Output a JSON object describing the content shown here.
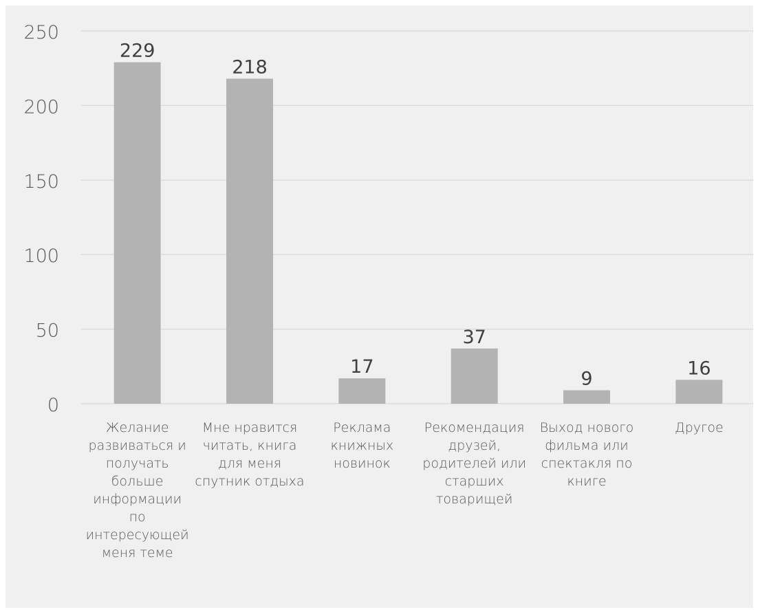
{
  "chart_data": {
    "type": "bar",
    "categories": [
      [
        "Желание",
        "развиваться и",
        "получать",
        "больше",
        "информации",
        "по",
        "интересующей",
        "меня теме"
      ],
      [
        "Мне нравится",
        "читать, книга",
        "для меня",
        "спутник отдыха"
      ],
      [
        "Реклама",
        "книжных",
        "новинок"
      ],
      [
        "Рекомендация",
        "друзей,",
        "родителей или",
        "старших",
        "товарищей"
      ],
      [
        "Выход нового",
        "фильма или",
        "спектакля по",
        "книге"
      ],
      [
        "Другое"
      ]
    ],
    "values": [
      229,
      218,
      17,
      37,
      9,
      16
    ],
    "data_labels": [
      "229",
      "218",
      "17",
      "37",
      "9",
      "16"
    ],
    "yticks": [
      "0",
      "50",
      "100",
      "150",
      "200",
      "250"
    ],
    "ylim": [
      0,
      250
    ],
    "grid": true,
    "legend": "none",
    "colors": {
      "bar": "#b3b3b3",
      "grid": "#d9d9d9",
      "background": "#f0f0f0",
      "tick_text": "#595959",
      "label_text": "#404040"
    }
  }
}
